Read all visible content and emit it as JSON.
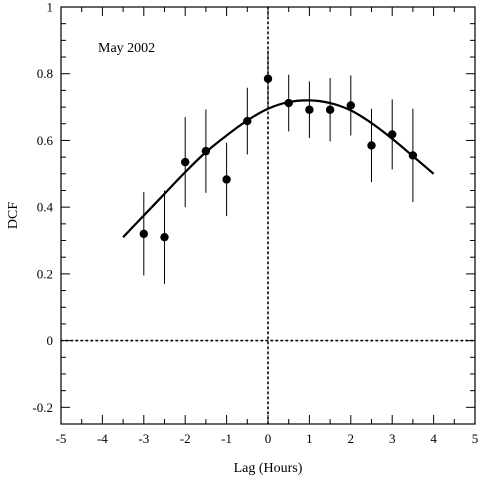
{
  "chart_data": {
    "type": "scatter",
    "annotation": "May 2002",
    "xlabel": "Lag (Hours)",
    "ylabel": "DCF",
    "xlim": [
      -5,
      5
    ],
    "ylim": [
      -0.25,
      1
    ],
    "x_ticks": [
      -5,
      -4,
      -3,
      -2,
      -1,
      0,
      1,
      2,
      3,
      4,
      5
    ],
    "x_tick_labels": [
      "-5",
      "-4",
      "-3",
      "-2",
      "-1",
      "0",
      "1",
      "2",
      "3",
      "4",
      "5"
    ],
    "y_ticks": [
      -0.2,
      0,
      0.2,
      0.4,
      0.6,
      0.8,
      1
    ],
    "y_tick_labels": [
      "-0.2",
      "0",
      "0.2",
      "0.4",
      "0.6",
      "0.8",
      "1"
    ],
    "grid": false,
    "reference_lines": {
      "horizontal_y": 0,
      "vertical_x": 0,
      "style": "dotted"
    },
    "points": [
      {
        "x": -3.0,
        "y": 0.32,
        "err": 0.125
      },
      {
        "x": -2.5,
        "y": 0.31,
        "err": 0.14
      },
      {
        "x": -2.0,
        "y": 0.535,
        "err": 0.135
      },
      {
        "x": -1.5,
        "y": 0.568,
        "err": 0.125
      },
      {
        "x": -1.0,
        "y": 0.483,
        "err": 0.11
      },
      {
        "x": -0.5,
        "y": 0.658,
        "err": 0.1
      },
      {
        "x": 0.0,
        "y": 0.785,
        "err": 0.085
      },
      {
        "x": 0.5,
        "y": 0.712,
        "err": 0.085
      },
      {
        "x": 1.0,
        "y": 0.692,
        "err": 0.085
      },
      {
        "x": 1.5,
        "y": 0.692,
        "err": 0.095
      },
      {
        "x": 2.0,
        "y": 0.705,
        "err": 0.09
      },
      {
        "x": 2.5,
        "y": 0.585,
        "err": 0.11
      },
      {
        "x": 3.0,
        "y": 0.618,
        "err": 0.105
      },
      {
        "x": 3.5,
        "y": 0.555,
        "err": 0.14
      }
    ],
    "fit_curve": {
      "x": [
        -3.5,
        -3,
        -2.5,
        -2,
        -1.5,
        -1,
        -0.5,
        0,
        0.5,
        1,
        1.5,
        2,
        2.5,
        3,
        3.5,
        4
      ],
      "y": [
        0.31,
        0.375,
        0.44,
        0.505,
        0.565,
        0.615,
        0.66,
        0.695,
        0.715,
        0.72,
        0.712,
        0.69,
        0.652,
        0.605,
        0.553,
        0.5
      ]
    },
    "colors": {
      "marker": "#000000",
      "line": "#000000",
      "background": "#ffffff"
    }
  }
}
